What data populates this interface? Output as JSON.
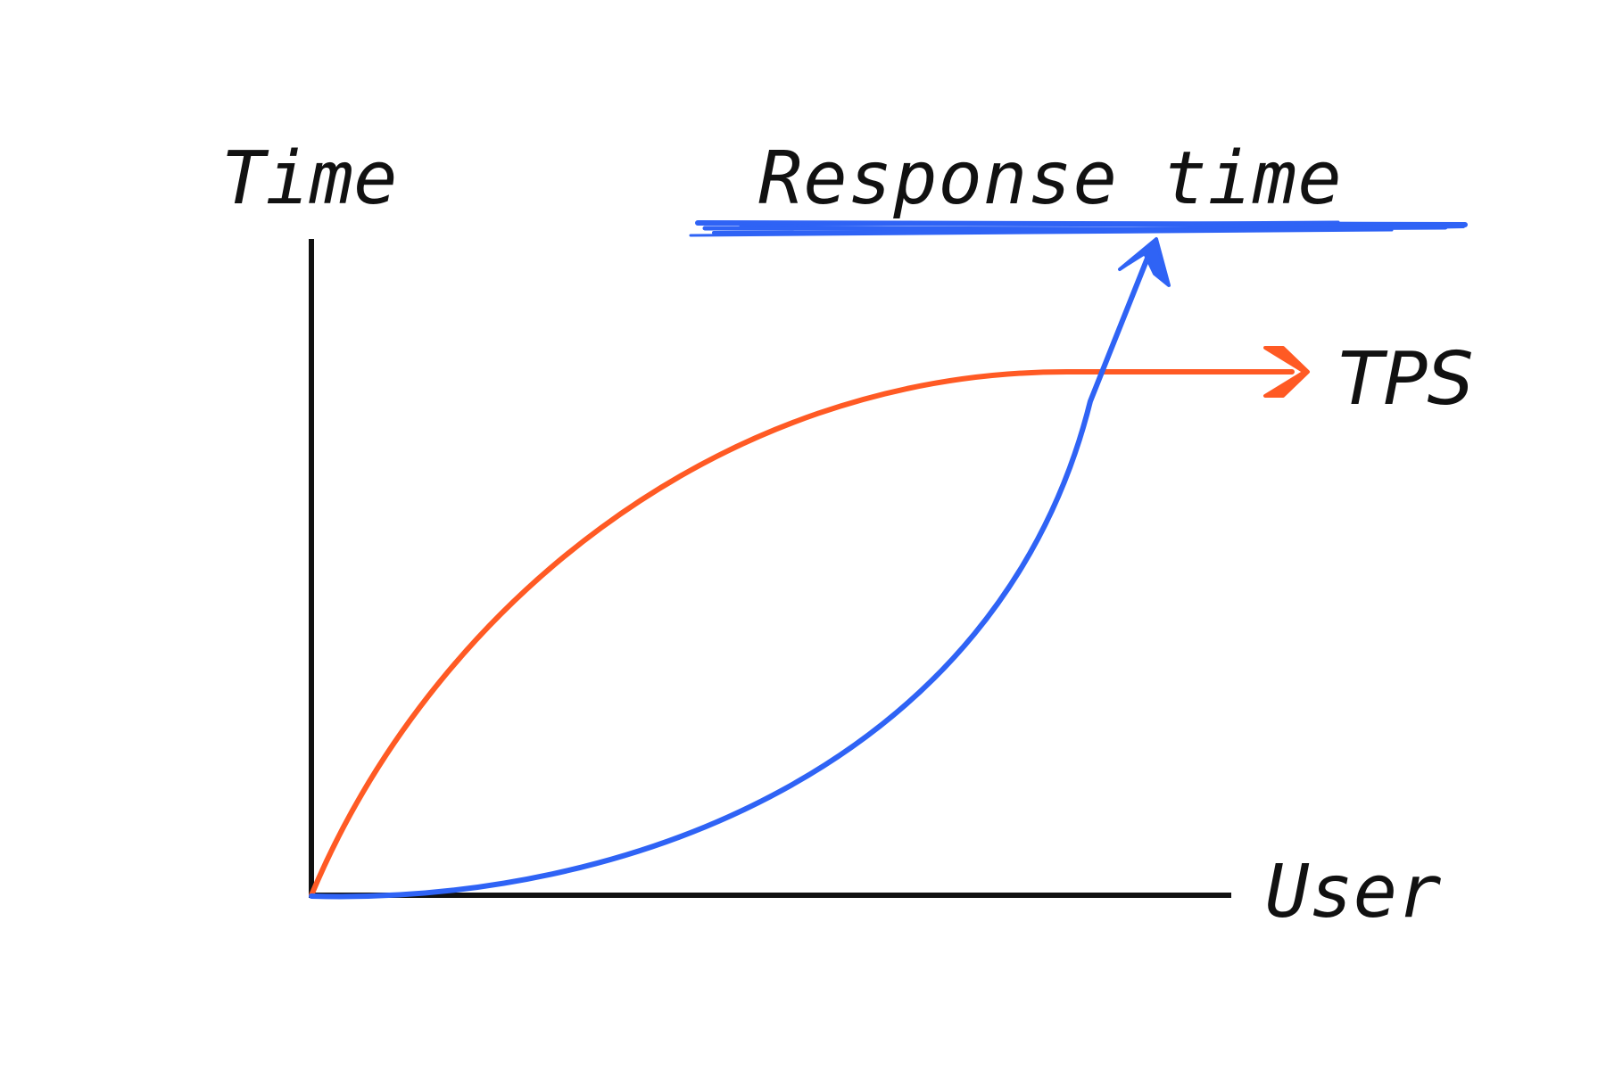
{
  "labels": {
    "y_axis": "Time",
    "x_axis": "User",
    "response_time": "Response time",
    "tps": "TPS"
  },
  "colors": {
    "axis": "#111111",
    "tps": "#ff5a24",
    "response_time": "#2f63f5",
    "background": "#ffffff"
  },
  "curves": [
    {
      "name": "TPS",
      "shape": "rises quickly then levels off",
      "color_key": "tps"
    },
    {
      "name": "Response time",
      "shape": "rises slowly then sharply",
      "color_key": "response_time"
    }
  ]
}
